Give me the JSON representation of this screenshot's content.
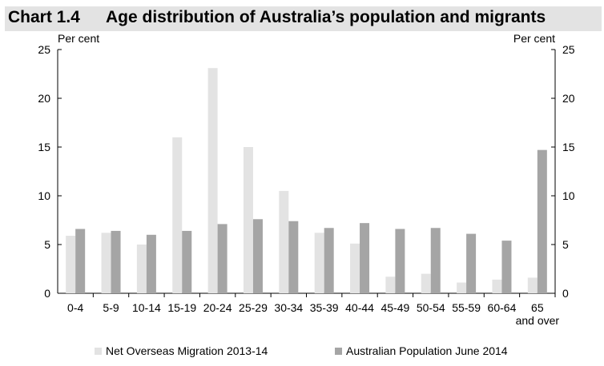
{
  "header": {
    "chart_number": "Chart 1.4",
    "chart_title": "Age distribution of Australia’s population and migrants"
  },
  "chart_data": {
    "type": "bar",
    "title": "Age distribution of Australia’s population and migrants",
    "y_unit_left": "Per cent",
    "y_unit_right": "Per cent",
    "ylim": [
      0,
      25
    ],
    "yticks": [
      0,
      5,
      10,
      15,
      20,
      25
    ],
    "grid": false,
    "legend_position": "bottom",
    "categories": [
      "0-4",
      "5-9",
      "10-14",
      "15-19",
      "20-24",
      "25-29",
      "30-34",
      "35-39",
      "40-44",
      "45-49",
      "50-54",
      "55-59",
      "60-64",
      "65 and over"
    ],
    "series": [
      {
        "name": "Net Overseas Migration 2013-14",
        "color": "#e3e3e3",
        "values": [
          5.9,
          6.2,
          5.0,
          16.0,
          23.1,
          15.0,
          10.5,
          6.2,
          5.1,
          1.7,
          2.0,
          1.1,
          1.4,
          1.6
        ]
      },
      {
        "name": "Australian Population June 2014",
        "color": "#a5a5a5",
        "values": [
          6.6,
          6.4,
          6.0,
          6.4,
          7.1,
          7.6,
          7.4,
          6.7,
          7.2,
          6.6,
          6.7,
          6.1,
          5.4,
          14.7
        ]
      }
    ]
  }
}
